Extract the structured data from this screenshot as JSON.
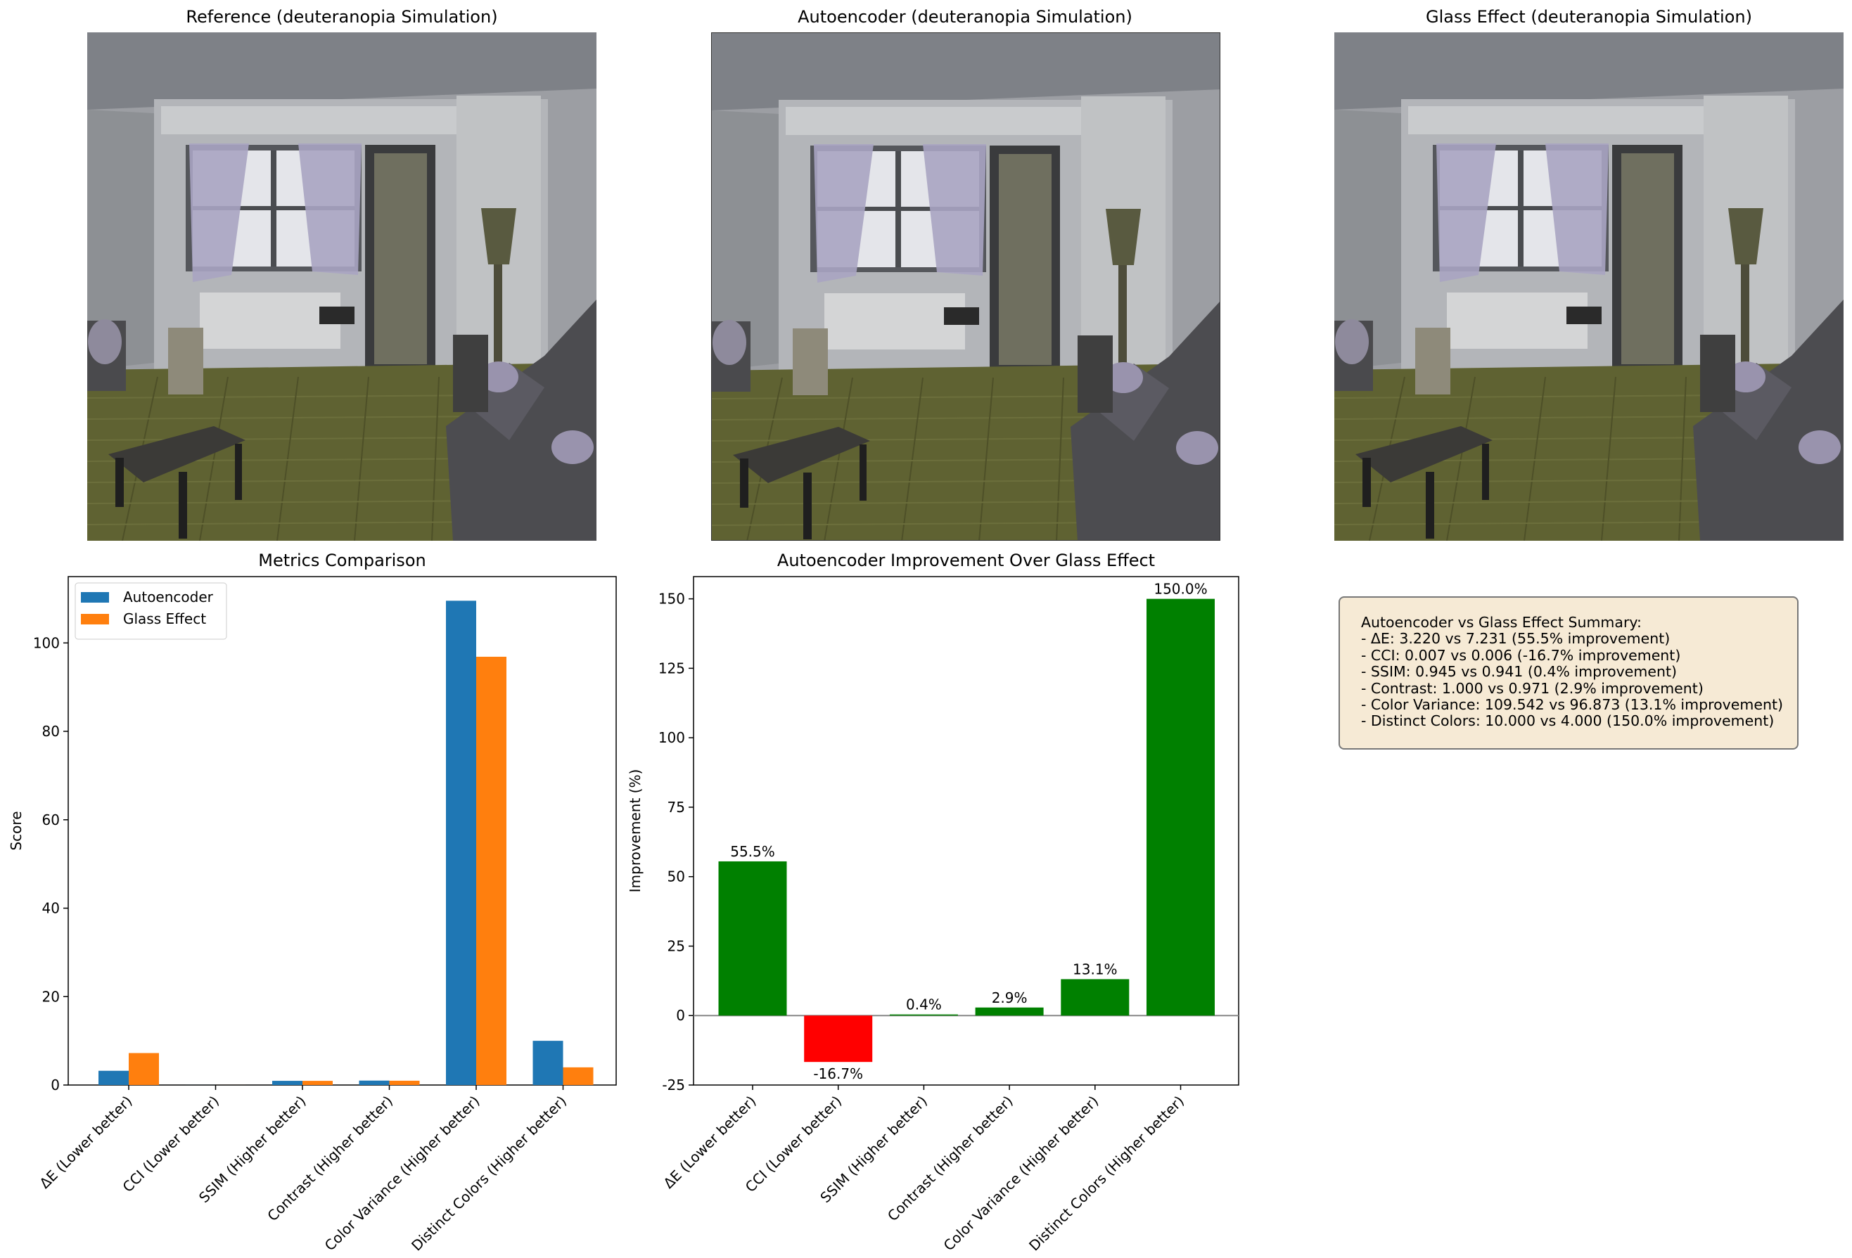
{
  "panels": {
    "reference_title": "Reference (deuteranopia Simulation)",
    "autoencoder_title": "Autoencoder (deuteranopia Simulation)",
    "glass_title": "Glass Effect (deuteranopia Simulation)"
  },
  "summary": {
    "lines": [
      "Autoencoder vs Glass Effect Summary:",
      "- ΔE: 3.220 vs 7.231 (55.5% improvement)",
      "- CCI: 0.007 vs 0.006 (-16.7% improvement)",
      "- SSIM: 0.945 vs 0.941 (0.4% improvement)",
      "- Contrast: 1.000 vs 0.971 (2.9% improvement)",
      "- Color Variance: 109.542 vs 96.873 (13.1% improvement)",
      "- Distinct Colors: 10.000 vs 4.000 (150.0% improvement)"
    ]
  },
  "colors": {
    "autoencoder": "#1f77b4",
    "glass": "#ff7f0e",
    "positive": "#008000",
    "negative": "#ff0000"
  },
  "chart_data": [
    {
      "type": "bar",
      "title": "Metrics Comparison",
      "xlabel": "",
      "ylabel": "Score",
      "ylim": [
        0,
        115
      ],
      "yticks": [
        0,
        20,
        40,
        60,
        80,
        100
      ],
      "legend": "top-left",
      "categories": [
        "ΔE (Lower better)",
        "CCI (Lower better)",
        "SSIM (Higher better)",
        "Contrast (Higher better)",
        "Color Variance (Higher better)",
        "Distinct Colors (Higher better)"
      ],
      "series": [
        {
          "name": "Autoencoder",
          "values": [
            3.22,
            0.007,
            0.945,
            1.0,
            109.542,
            10.0
          ]
        },
        {
          "name": "Glass Effect",
          "values": [
            7.231,
            0.006,
            0.941,
            0.971,
            96.873,
            4.0
          ]
        }
      ]
    },
    {
      "type": "bar",
      "title": "Autoencoder Improvement Over Glass Effect",
      "xlabel": "",
      "ylabel": "Improvement (%)",
      "ylim": [
        -25,
        158
      ],
      "yticks": [
        -25,
        0,
        25,
        50,
        75,
        100,
        125,
        150
      ],
      "categories": [
        "ΔE (Lower better)",
        "CCI (Lower better)",
        "SSIM (Higher better)",
        "Contrast (Higher better)",
        "Color Variance (Higher better)",
        "Distinct Colors (Higher better)"
      ],
      "values": [
        55.5,
        -16.7,
        0.4,
        2.9,
        13.1,
        150.0
      ],
      "labels": [
        "55.5%",
        "-16.7%",
        "0.4%",
        "2.9%",
        "13.1%",
        "150.0%"
      ]
    }
  ]
}
